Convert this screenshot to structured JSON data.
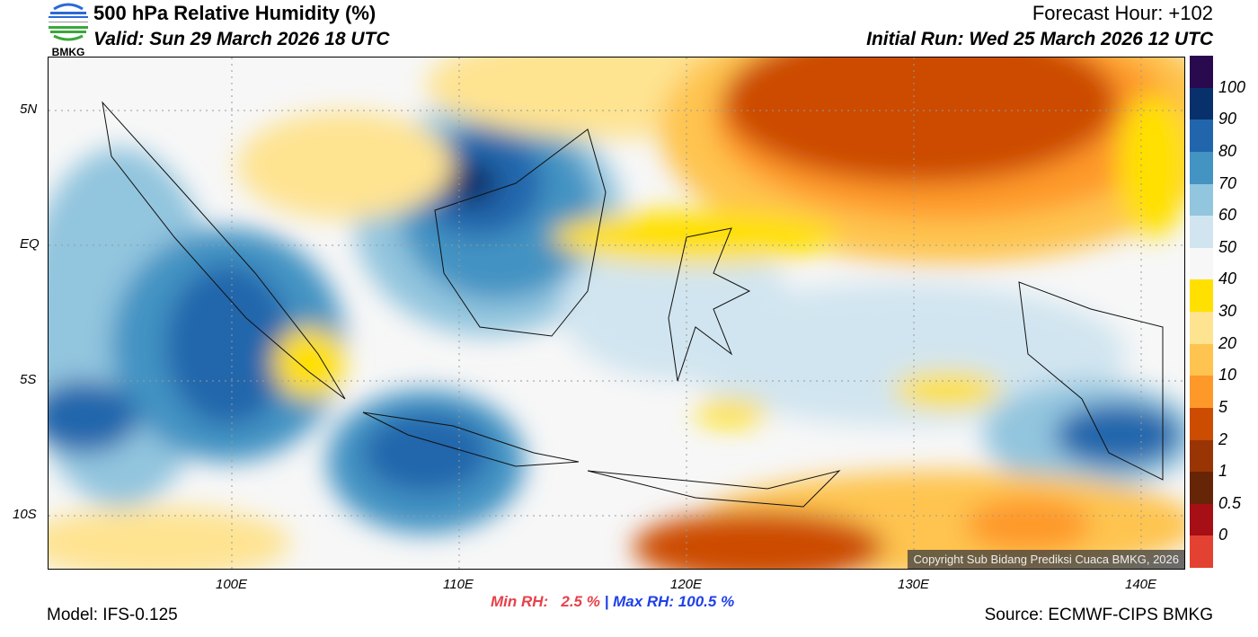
{
  "header": {
    "logo_text": "BMKG",
    "title": "500 hPa Relative Humidity (%)",
    "valid": "Valid: Sun 29 March 2026 18 UTC",
    "forecast_hour": "Forecast Hour: +102",
    "initial_run": "Initial Run: Wed 25 March 2026 12 UTC"
  },
  "axes": {
    "lat_ticks": [
      "5N",
      "EQ",
      "5S",
      "10S"
    ],
    "lon_ticks": [
      "100E",
      "110E",
      "120E",
      "130E",
      "140E"
    ]
  },
  "colorbar": {
    "labels": [
      "100",
      "90",
      "80",
      "70",
      "60",
      "50",
      "40",
      "30",
      "20",
      "10",
      "5",
      "2",
      "1",
      "0.5",
      "0"
    ],
    "colors": [
      "#2a0a4e",
      "#08306b",
      "#2166ac",
      "#4393c3",
      "#92c5de",
      "#d1e5f0",
      "#f7f7f7",
      "#ffe000",
      "#fee391",
      "#fec44f",
      "#fe9929",
      "#cc4c02",
      "#993404",
      "#662506",
      "#a50f15",
      "#e34132"
    ]
  },
  "footer": {
    "model": "Model: IFS-0.125",
    "min_rh": "Min RH:   2.5 %",
    "max_rh": "| Max RH: 100.5 %",
    "source": "Source: ECMWF-CIPS BMKG",
    "copyright": "Copyright Sub Bidang Prediksi Cuaca BMKG, 2026"
  }
}
